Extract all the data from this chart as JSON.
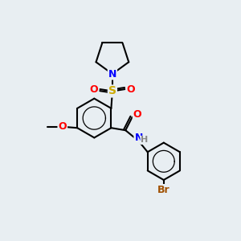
{
  "background_color": "#e8eef2",
  "bond_color": "#000000",
  "bond_width": 1.5,
  "atom_colors": {
    "N": "#0000ff",
    "O": "#ff0000",
    "S": "#ccaa00",
    "Br": "#a05000",
    "H": "#888888",
    "C": "#000000"
  },
  "font_size": 9
}
